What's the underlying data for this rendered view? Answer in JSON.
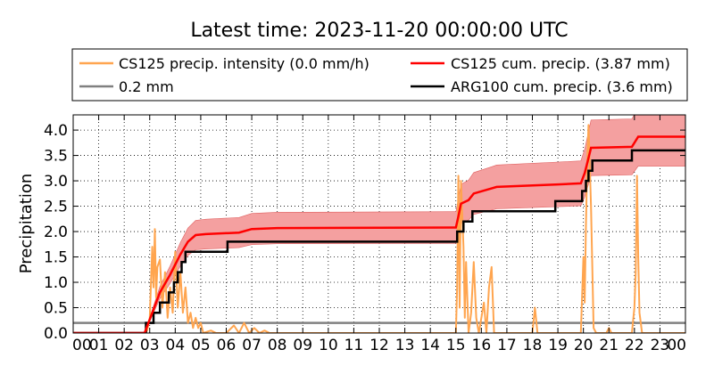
{
  "chart_data": {
    "type": "line",
    "title": "Latest time: 2023-11-20 00:00:00 UTC",
    "xlabel": "",
    "ylabel": "Precipitation",
    "xlim": [
      0,
      24
    ],
    "ylim": [
      0,
      4.3
    ],
    "grid": true,
    "legend_placement": "top",
    "x_tick_labels": [
      "00",
      "01",
      "02",
      "03",
      "04",
      "05",
      "06",
      "07",
      "08",
      "09",
      "10",
      "11",
      "12",
      "13",
      "14",
      "15",
      "16",
      "17",
      "18",
      "19",
      "20",
      "21",
      "22",
      "23",
      "00"
    ],
    "y_ticks": [
      0.0,
      0.5,
      1.0,
      1.5,
      2.0,
      2.5,
      3.0,
      3.5,
      4.0
    ],
    "y_tick_labels": [
      "0.0",
      "0.5",
      "1.0",
      "1.5",
      "2.0",
      "2.5",
      "3.0",
      "3.5",
      "4.0"
    ],
    "legend": [
      {
        "label": "CS125 precip. intensity (0.0 mm/h)",
        "color": "#FFA54F"
      },
      {
        "label": "CS125 cum. precip. (3.87 mm)",
        "color": "#FF0000"
      },
      {
        "label": "0.2 mm",
        "color": "#808080"
      },
      {
        "label": "ARG100 cum. precip. (3.6 mm)",
        "color": "#000000"
      }
    ],
    "threshold": {
      "name": "0.2 mm",
      "value": 0.2,
      "color": "#808080"
    },
    "intensity": {
      "name": "CS125 precip. intensity (0.0 mm/h)",
      "color": "#FFA54F",
      "points": [
        [
          0,
          0
        ],
        [
          2.8,
          0
        ],
        [
          2.9,
          0.05
        ],
        [
          3.0,
          0.3
        ],
        [
          3.1,
          1.7
        ],
        [
          3.15,
          0.9
        ],
        [
          3.2,
          2.05
        ],
        [
          3.25,
          0.7
        ],
        [
          3.3,
          1.3
        ],
        [
          3.4,
          1.45
        ],
        [
          3.5,
          0.5
        ],
        [
          3.6,
          1.2
        ],
        [
          3.7,
          0.3
        ],
        [
          3.8,
          0.9
        ],
        [
          3.9,
          0.4
        ],
        [
          4.0,
          1.6
        ],
        [
          4.1,
          0.5
        ],
        [
          4.2,
          1.2
        ],
        [
          4.3,
          0.4
        ],
        [
          4.4,
          0.9
        ],
        [
          4.5,
          0.2
        ],
        [
          4.6,
          0.4
        ],
        [
          4.7,
          0.1
        ],
        [
          4.8,
          0.3
        ],
        [
          4.9,
          0.1
        ],
        [
          5.0,
          0.2
        ],
        [
          5.1,
          0
        ],
        [
          5.4,
          0.05
        ],
        [
          5.6,
          0
        ],
        [
          6.0,
          0
        ],
        [
          6.3,
          0.15
        ],
        [
          6.5,
          0
        ],
        [
          6.7,
          0.2
        ],
        [
          6.9,
          0
        ],
        [
          7.1,
          0.1
        ],
        [
          7.3,
          0
        ],
        [
          7.5,
          0.05
        ],
        [
          7.7,
          0
        ],
        [
          15.0,
          0
        ],
        [
          15.05,
          0.9
        ],
        [
          15.1,
          3.1
        ],
        [
          15.15,
          0.5
        ],
        [
          15.2,
          3.0
        ],
        [
          15.3,
          1.7
        ],
        [
          15.35,
          0.3
        ],
        [
          15.4,
          1.4
        ],
        [
          15.5,
          0
        ],
        [
          15.6,
          0.4
        ],
        [
          15.7,
          1.4
        ],
        [
          15.8,
          0.3
        ],
        [
          15.9,
          0
        ],
        [
          16.1,
          0.6
        ],
        [
          16.2,
          0
        ],
        [
          16.3,
          0.9
        ],
        [
          16.4,
          1.3
        ],
        [
          16.5,
          0
        ],
        [
          17.0,
          0
        ],
        [
          18.0,
          0
        ],
        [
          18.1,
          0.5
        ],
        [
          18.2,
          0
        ],
        [
          19.9,
          0
        ],
        [
          20.0,
          1.5
        ],
        [
          20.05,
          0.6
        ],
        [
          20.1,
          2.1
        ],
        [
          20.15,
          3.4
        ],
        [
          20.2,
          4.1
        ],
        [
          20.3,
          2.5
        ],
        [
          20.4,
          0.1
        ],
        [
          20.5,
          0
        ],
        [
          20.9,
          0
        ],
        [
          21.0,
          0.1
        ],
        [
          21.1,
          0
        ],
        [
          21.9,
          0
        ],
        [
          22.0,
          0.5
        ],
        [
          22.05,
          1.2
        ],
        [
          22.1,
          3.1
        ],
        [
          22.15,
          1.5
        ],
        [
          22.2,
          0.4
        ],
        [
          22.3,
          0
        ],
        [
          24.0,
          0
        ]
      ]
    },
    "cs125_cumulative": {
      "name": "CS125 cum. precip. (3.87 mm)",
      "color": "#FF0000",
      "band_color": "#F4A0A0",
      "band_fraction": 0.15,
      "points": [
        [
          0,
          0
        ],
        [
          2.8,
          0
        ],
        [
          3.1,
          0.4
        ],
        [
          3.4,
          0.8
        ],
        [
          3.8,
          1.15
        ],
        [
          4.2,
          1.55
        ],
        [
          4.5,
          1.8
        ],
        [
          4.8,
          1.93
        ],
        [
          5.2,
          1.95
        ],
        [
          6.5,
          1.98
        ],
        [
          7.0,
          2.05
        ],
        [
          8.0,
          2.07
        ],
        [
          15.0,
          2.08
        ],
        [
          15.1,
          2.3
        ],
        [
          15.2,
          2.55
        ],
        [
          15.5,
          2.62
        ],
        [
          15.7,
          2.75
        ],
        [
          16.4,
          2.85
        ],
        [
          16.6,
          2.88
        ],
        [
          19.0,
          2.93
        ],
        [
          19.9,
          2.95
        ],
        [
          20.05,
          3.15
        ],
        [
          20.2,
          3.45
        ],
        [
          20.3,
          3.65
        ],
        [
          21.9,
          3.67
        ],
        [
          22.15,
          3.87
        ],
        [
          24.0,
          3.87
        ]
      ]
    },
    "arg100_cumulative": {
      "name": "ARG100 cum. precip. (3.6 mm)",
      "color": "#000000",
      "points": [
        [
          0,
          0
        ],
        [
          2.85,
          0
        ],
        [
          2.85,
          0.2
        ],
        [
          3.15,
          0.2
        ],
        [
          3.15,
          0.4
        ],
        [
          3.4,
          0.4
        ],
        [
          3.4,
          0.6
        ],
        [
          3.75,
          0.6
        ],
        [
          3.75,
          0.8
        ],
        [
          3.95,
          0.8
        ],
        [
          3.95,
          1.0
        ],
        [
          4.1,
          1.0
        ],
        [
          4.1,
          1.2
        ],
        [
          4.25,
          1.2
        ],
        [
          4.25,
          1.4
        ],
        [
          4.4,
          1.4
        ],
        [
          4.4,
          1.6
        ],
        [
          6.05,
          1.6
        ],
        [
          6.05,
          1.8
        ],
        [
          15.05,
          1.8
        ],
        [
          15.05,
          2.0
        ],
        [
          15.3,
          2.0
        ],
        [
          15.3,
          2.2
        ],
        [
          15.65,
          2.2
        ],
        [
          15.65,
          2.4
        ],
        [
          18.9,
          2.4
        ],
        [
          18.9,
          2.6
        ],
        [
          19.95,
          2.6
        ],
        [
          19.95,
          2.8
        ],
        [
          20.1,
          2.8
        ],
        [
          20.1,
          3.0
        ],
        [
          20.2,
          3.0
        ],
        [
          20.2,
          3.2
        ],
        [
          20.35,
          3.2
        ],
        [
          20.35,
          3.4
        ],
        [
          21.9,
          3.4
        ],
        [
          21.9,
          3.6
        ],
        [
          24.0,
          3.6
        ]
      ]
    }
  }
}
